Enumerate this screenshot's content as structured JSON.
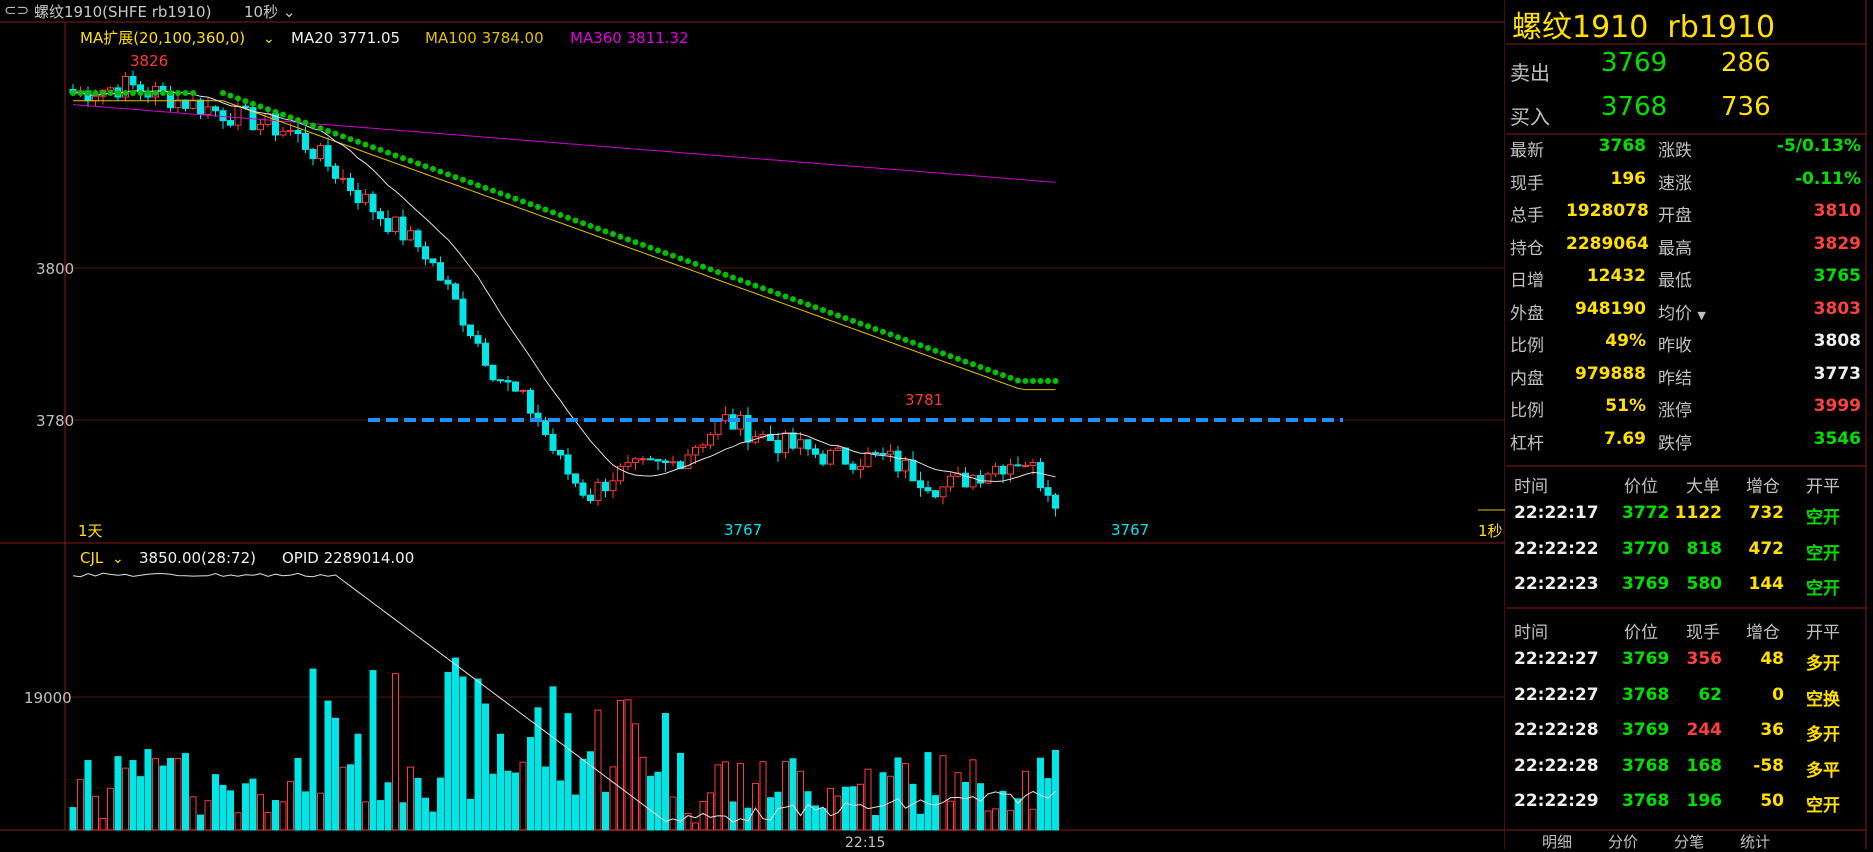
{
  "topbar": {
    "instrument": "螺纹1910(SHFE rb1910)",
    "interval": "10秒"
  },
  "legend_ma": {
    "label": "MA扩展(20,100,360,0)",
    "ma20": "MA20 3771.05",
    "ma100": "MA100 3784.00",
    "ma360": "MA360 3811.32"
  },
  "legend_vol": {
    "label": "CJL",
    "val1": "3850.00(28:72)",
    "val2": "OPID 2289014.00"
  },
  "axis": {
    "p3800": "3800",
    "p3780": "3780",
    "v19000": "19000",
    "left_period": "1天",
    "right_period": "1秒",
    "time_tick": "22:15"
  },
  "annotations": {
    "high": "3826",
    "mid_high": "3781",
    "low1": "3767",
    "low2": "3767"
  },
  "colors": {
    "up": "#ff3838",
    "down": "#00e6e6",
    "ma20": "#e0e0e0",
    "ma100": "#e0c000",
    "ma360": "#d000d0",
    "dots": "#00c000",
    "hline": "#1e90ff"
  },
  "chart_data": {
    "type": "candlestick",
    "up_color_meaning": "up",
    "levels": {
      "price_high": 3826,
      "price_low": 3767,
      "mark_high2": 3781,
      "support_line": 3780
    },
    "candles": [],
    "volumes": []
  },
  "panel": {
    "title": "螺纹1910  rb1910",
    "sell": {
      "label": "卖出",
      "price": "3769",
      "qty": "286"
    },
    "buy": {
      "label": "买入",
      "price": "3768",
      "qty": "736"
    },
    "quotes": [
      {
        "l1": "最新",
        "v1": "3768",
        "c1": "gr",
        "l2": "涨跌",
        "v2": "-5/0.13%",
        "c2": "gr"
      },
      {
        "l1": "现手",
        "v1": "196",
        "c1": "ye",
        "l2": "速涨",
        "v2": "-0.11%",
        "c2": "gr"
      },
      {
        "l1": "总手",
        "v1": "1928078",
        "c1": "ye",
        "l2": "开盘",
        "v2": "3810",
        "c2": "re"
      },
      {
        "l1": "持仓",
        "v1": "2289064",
        "c1": "ye",
        "l2": "最高",
        "v2": "3829",
        "c2": "re"
      },
      {
        "l1": "日增",
        "v1": "12432",
        "c1": "ye",
        "l2": "最低",
        "v2": "3765",
        "c2": "gr"
      },
      {
        "l1": "外盘",
        "v1": "948190",
        "c1": "ye",
        "l2": "均价",
        "v2": "3803",
        "c2": "re"
      },
      {
        "l1": "比例",
        "v1": "49%",
        "c1": "ye",
        "l2": "昨收",
        "v2": "3808",
        "c2": "wh"
      },
      {
        "l1": "内盘",
        "v1": "979888",
        "c1": "ye",
        "l2": "昨结",
        "v2": "3773",
        "c2": "wh"
      },
      {
        "l1": "比例",
        "v1": "51%",
        "c1": "ye",
        "l2": "涨停",
        "v2": "3999",
        "c2": "re"
      },
      {
        "l1": "杠杆",
        "v1": "7.69",
        "c1": "ye",
        "l2": "跌停",
        "v2": "3546",
        "c2": "gr"
      }
    ],
    "ticks1_header": [
      "时间",
      "价位",
      "大单",
      "增仓",
      "开平"
    ],
    "ticks1": [
      {
        "time": "22:22:17",
        "price": "3772",
        "pc": "gr",
        "vol": "1122",
        "vc": "ye",
        "inc": "732",
        "type": "空开",
        "tc": "gr"
      },
      {
        "time": "22:22:22",
        "price": "3770",
        "pc": "gr",
        "vol": "818",
        "vc": "gr",
        "inc": "472",
        "type": "空开",
        "tc": "gr"
      },
      {
        "time": "22:22:23",
        "price": "3769",
        "pc": "gr",
        "vol": "580",
        "vc": "gr",
        "inc": "144",
        "type": "空开",
        "tc": "gr"
      }
    ],
    "ticks2_header": [
      "时间",
      "价位",
      "现手",
      "增仓",
      "开平"
    ],
    "ticks2": [
      {
        "time": "22:22:27",
        "price": "3769",
        "pc": "gr",
        "vol": "356",
        "vc": "re",
        "inc": "48",
        "type": "多开",
        "tc": "ye"
      },
      {
        "time": "22:22:27",
        "price": "3768",
        "pc": "gr",
        "vol": "62",
        "vc": "gr",
        "inc": "0",
        "type": "空换",
        "tc": "ye"
      },
      {
        "time": "22:22:28",
        "price": "3769",
        "pc": "gr",
        "vol": "244",
        "vc": "re",
        "inc": "36",
        "type": "多开",
        "tc": "ye"
      },
      {
        "time": "22:22:28",
        "price": "3768",
        "pc": "gr",
        "vol": "168",
        "vc": "gr",
        "inc": "-58",
        "type": "多平",
        "tc": "ye"
      },
      {
        "time": "22:22:29",
        "price": "3768",
        "pc": "gr",
        "vol": "196",
        "vc": "gr",
        "inc": "50",
        "type": "空开",
        "tc": "ye"
      }
    ],
    "tabs": [
      "明细",
      "分价",
      "分笔",
      "统计"
    ]
  }
}
